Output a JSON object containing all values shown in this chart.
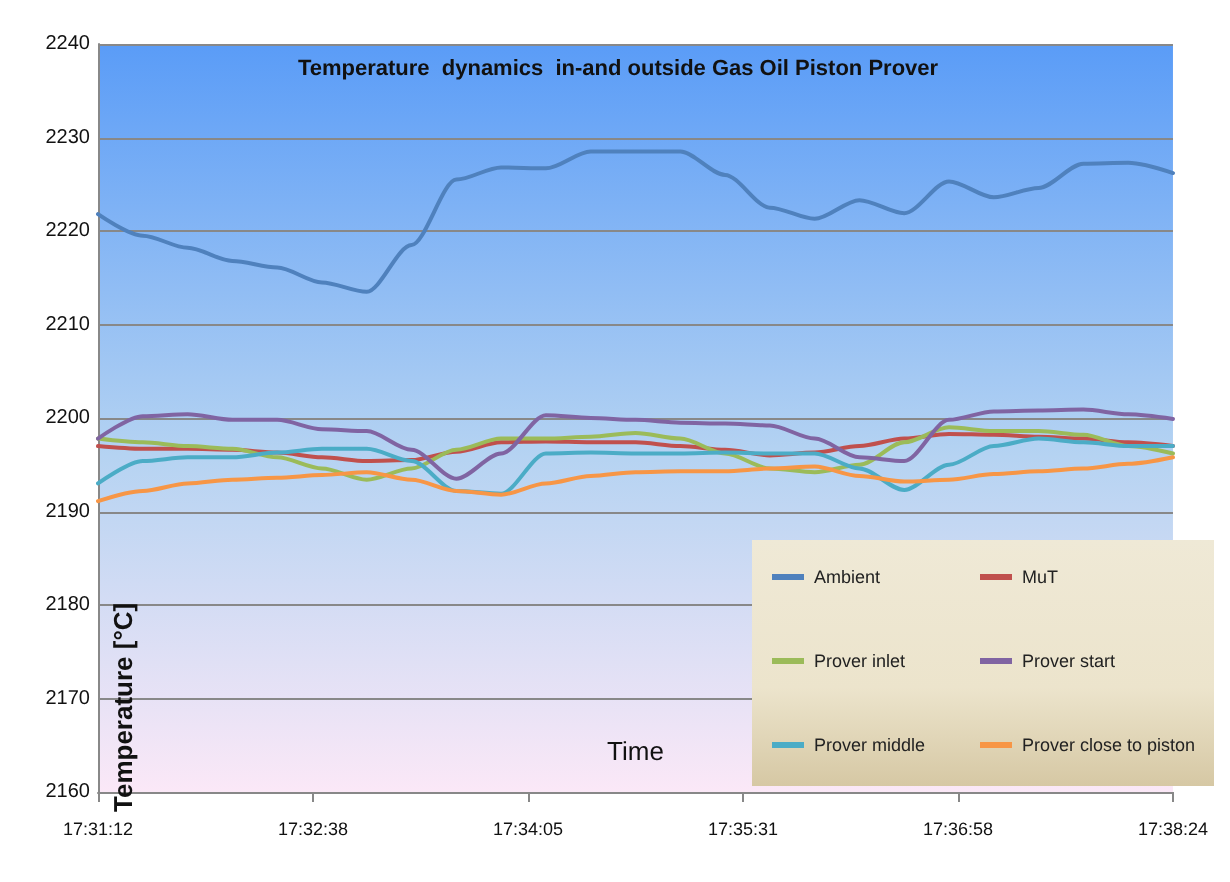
{
  "chart_data": {
    "type": "line",
    "title": "Temperature  dynamics  in-and outside Gas Oil Piston Prover",
    "xlabel": "Time",
    "ylabel": "Temperature [°C]",
    "x": [
      17.52,
      17.525,
      17.53,
      17.535,
      17.54,
      17.545,
      17.55,
      17.555,
      17.56,
      17.565,
      17.57,
      17.575,
      17.58,
      17.585,
      17.59,
      17.595,
      17.6,
      17.605,
      17.61,
      17.615,
      17.62,
      17.625,
      17.63,
      17.635,
      17.64
    ],
    "series": [
      {
        "name": "Ambient",
        "color": "#4f81bd",
        "values": [
          2221.8,
          2219.5,
          2218.2,
          2216.8,
          2216.1,
          2214.5,
          2213.5,
          2218.5,
          2225.5,
          2226.8,
          2226.7,
          2228.5,
          2228.5,
          2228.5,
          2226,
          2222.5,
          2221.3,
          2223.3,
          2221.9,
          2225.3,
          2223.6,
          2224.6,
          2227.2,
          2227.3,
          2226.2
        ]
      },
      {
        "name": "MuT",
        "color": "#c0504d",
        "values": [
          2197,
          2196.7,
          2196.7,
          2196.6,
          2196.3,
          2195.8,
          2195.4,
          2195.5,
          2196.4,
          2197.4,
          2197.5,
          2197.4,
          2197.4,
          2197,
          2196.6,
          2196,
          2196.3,
          2197,
          2197.8,
          2198.3,
          2198.2,
          2198,
          2197.8,
          2197.4,
          2197
        ]
      },
      {
        "name": "Prover inlet",
        "color": "#9bbb59",
        "values": [
          2197.8,
          2197.4,
          2197,
          2196.7,
          2195.8,
          2194.6,
          2193.4,
          2194.6,
          2196.6,
          2197.8,
          2197.8,
          2198,
          2198.4,
          2197.8,
          2196.2,
          2194.6,
          2194.2,
          2195,
          2197.4,
          2199,
          2198.6,
          2198.6,
          2198.2,
          2197,
          2196.2
        ]
      },
      {
        "name": "Prover start",
        "color": "#8064a2",
        "values": [
          2197.8,
          2200.2,
          2200.4,
          2199.8,
          2199.8,
          2198.8,
          2198.6,
          2196.6,
          2193.5,
          2196.2,
          2200.3,
          2200,
          2199.8,
          2199.5,
          2199.4,
          2199.2,
          2197.8,
          2195.8,
          2195.4,
          2199.8,
          2200.7,
          2200.8,
          2200.9,
          2200.4,
          2199.9
        ]
      },
      {
        "name": "Prover middle",
        "color": "#4bacc6",
        "values": [
          2193,
          2195.4,
          2195.8,
          2195.8,
          2196.3,
          2196.7,
          2196.7,
          2195.4,
          2192.2,
          2191.9,
          2196.2,
          2196.3,
          2196.2,
          2196.2,
          2196.3,
          2196.2,
          2196.2,
          2194.6,
          2192.3,
          2195,
          2197,
          2197.8,
          2197.4,
          2197,
          2197
        ]
      },
      {
        "name": "Prover close to piston",
        "color": "#f79646",
        "values": [
          2191.1,
          2192.2,
          2193,
          2193.4,
          2193.6,
          2193.9,
          2194.2,
          2193.4,
          2192.2,
          2191.8,
          2193,
          2193.8,
          2194.2,
          2194.3,
          2194.3,
          2194.6,
          2194.8,
          2193.8,
          2193.2,
          2193.4,
          2194,
          2194.3,
          2194.6,
          2195.1,
          2195.8
        ]
      }
    ],
    "xlim": [
      17.52,
      17.64
    ],
    "xticks": [
      {
        "value": 17.52,
        "label": "17:31:12"
      },
      {
        "value": 17.544,
        "label": "17:32:38"
      },
      {
        "value": 17.568,
        "label": "17:34:05"
      },
      {
        "value": 17.592,
        "label": "17:35:31"
      },
      {
        "value": 17.616,
        "label": "17:36:58"
      },
      {
        "value": 17.64,
        "label": "17:38:24"
      }
    ],
    "ylim": [
      2160,
      2240
    ],
    "yticks": [
      2160,
      2170,
      2180,
      2190,
      2200,
      2210,
      2220,
      2230,
      2240
    ],
    "grid": "y",
    "legend": "bottom right",
    "marker": "none",
    "line_style": "solid"
  }
}
